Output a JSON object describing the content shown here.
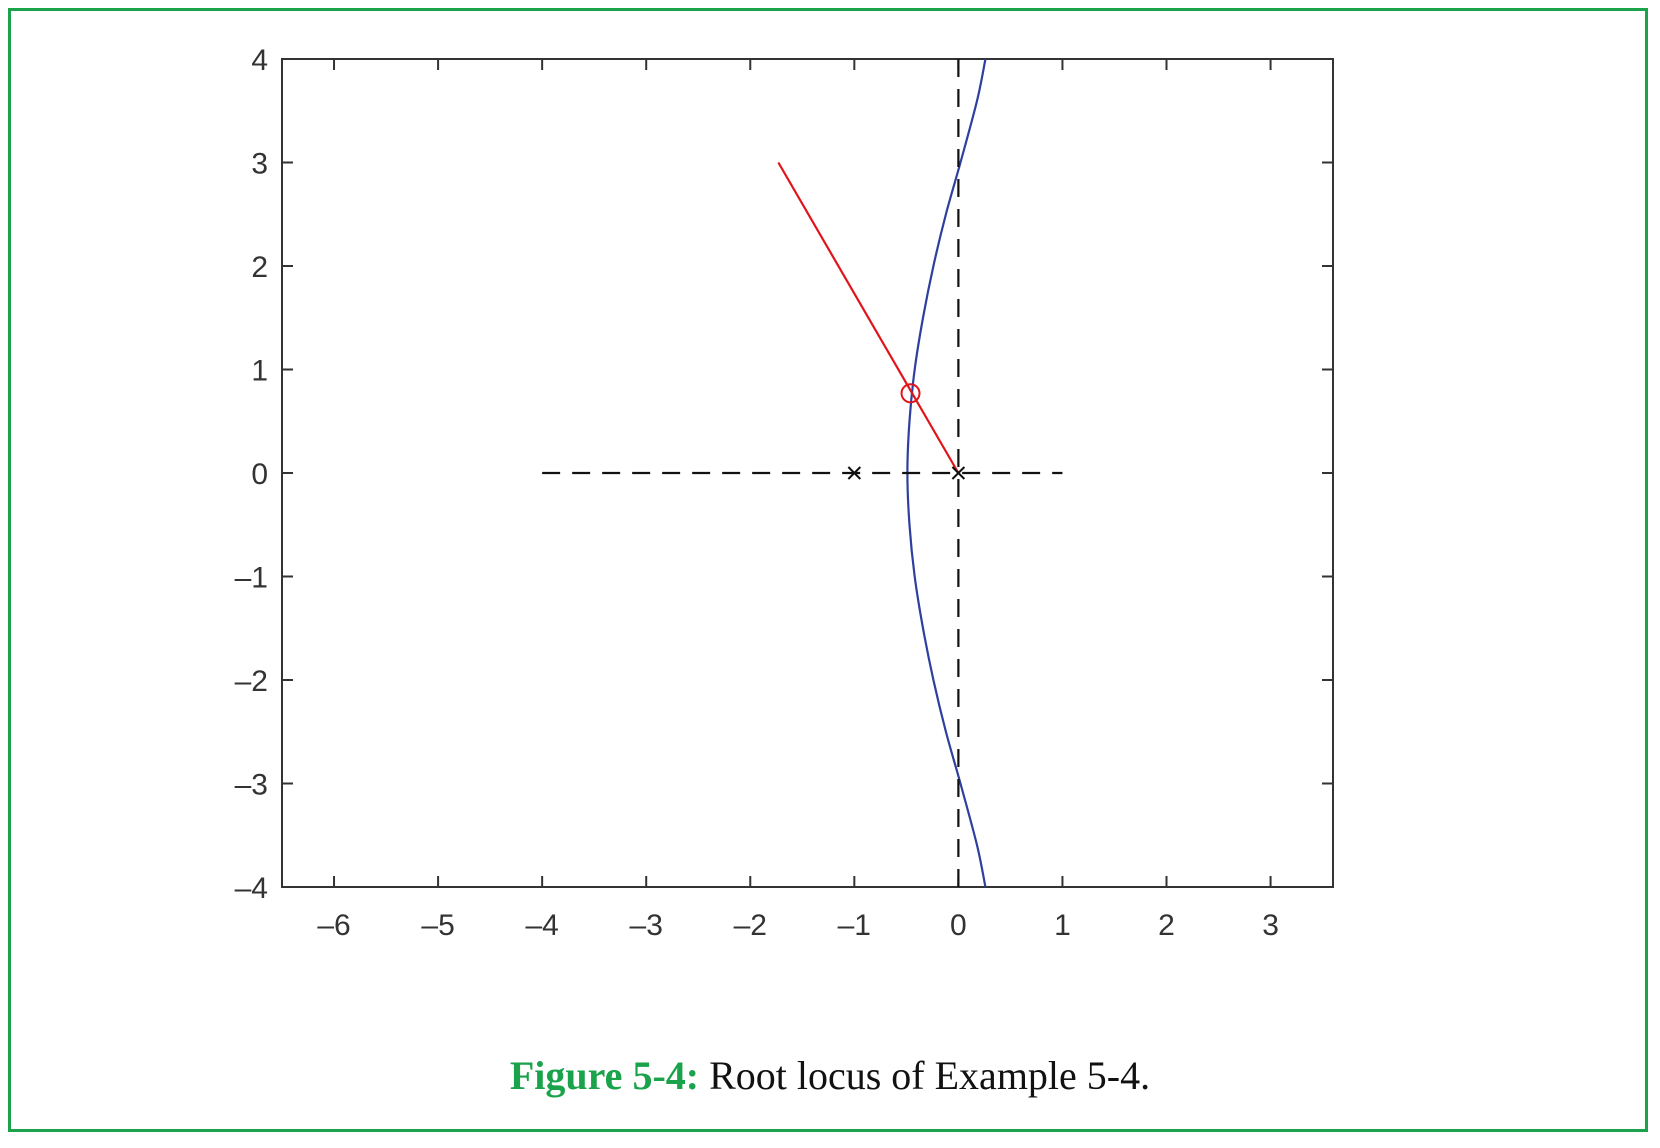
{
  "caption": {
    "label": "Figure 5-4:",
    "text": " Root locus of Example 5-4."
  },
  "colors": {
    "border": "#1aa34a",
    "locus": "#2e3fa0",
    "line": "#e0141a",
    "axis": "#333333"
  },
  "chart_data": {
    "type": "line",
    "title": "",
    "xlabel": "",
    "ylabel": "",
    "xlim": [
      -6.5,
      3.6
    ],
    "ylim": [
      -4,
      4
    ],
    "xticks": [
      -6,
      -5,
      -4,
      -3,
      -2,
      -1,
      0,
      1,
      2,
      3
    ],
    "yticks": [
      -4,
      -3,
      -2,
      -1,
      0,
      1,
      2,
      3,
      4
    ],
    "xtick_labels": [
      "–6",
      "–5",
      "–4",
      "–3",
      "–2",
      "–1",
      "0",
      "1",
      "2",
      "3"
    ],
    "ytick_labels": [
      "–4",
      "–3",
      "–2",
      "–1",
      "0",
      "1",
      "2",
      "3",
      "4"
    ],
    "grid": false,
    "series": [
      {
        "kind": "locus",
        "color": "#2e3fa0",
        "x": [
          0.26,
          0.18,
          0.02,
          -0.12,
          -0.24,
          -0.34,
          -0.42,
          -0.47,
          -0.49,
          -0.47,
          -0.42,
          -0.34,
          -0.24,
          -0.12,
          0.02,
          0.18,
          0.26
        ],
        "y": [
          4.0,
          3.6,
          3.0,
          2.5,
          2.0,
          1.5,
          1.0,
          0.5,
          0.0,
          -0.5,
          -1.0,
          -1.5,
          -2.0,
          -2.5,
          -3.0,
          -3.6,
          -4.0
        ]
      },
      {
        "kind": "line",
        "color": "#e0141a",
        "x": [
          -1.73,
          0
        ],
        "y": [
          3.0,
          0
        ]
      },
      {
        "kind": "dashed-horizontal",
        "color": "#111111",
        "x": [
          -4,
          1
        ],
        "y": [
          0,
          0
        ]
      },
      {
        "kind": "dashed-vertical",
        "color": "#111111",
        "x": [
          0,
          0
        ],
        "y": [
          -4,
          4
        ]
      }
    ],
    "poles": [
      {
        "x": -1,
        "y": 0
      },
      {
        "x": 0,
        "y": 0
      }
    ],
    "markers": [
      {
        "shape": "circle",
        "color": "#e0141a",
        "x": -0.46,
        "y": 0.77
      }
    ]
  }
}
